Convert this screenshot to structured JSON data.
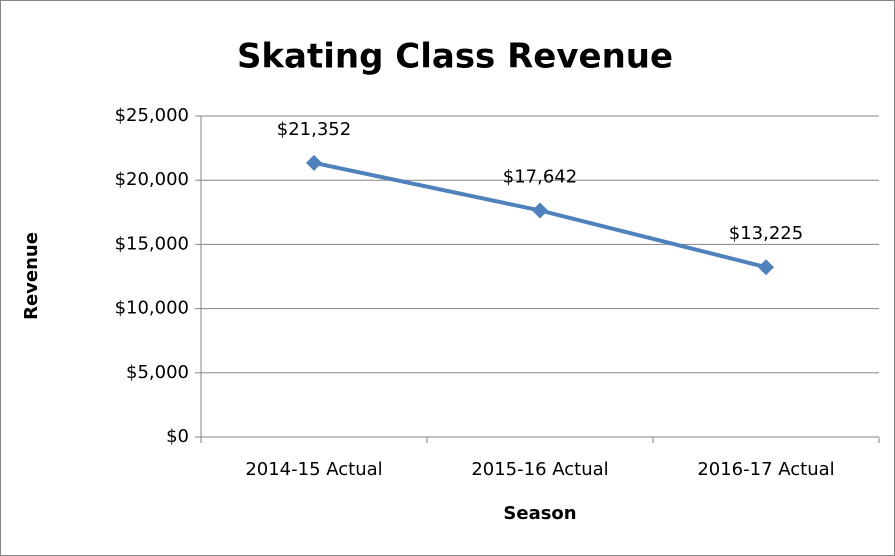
{
  "chart_data": {
    "type": "line",
    "title": "Skating Class Revenue",
    "x_label": "Season",
    "y_label": "Revenue",
    "categories": [
      "2014-15 Actual",
      "2015-16 Actual",
      "2016-17 Actual"
    ],
    "series": [
      {
        "name": "Revenue",
        "color": "#4f81bd",
        "values": [
          21352,
          17642,
          13225
        ],
        "value_labels": [
          "$21,352",
          "$17,642",
          "$13,225"
        ]
      }
    ],
    "ylim": [
      0,
      25000
    ],
    "yticks": [
      {
        "value": 0,
        "label": "$0"
      },
      {
        "value": 5000,
        "label": "$5,000"
      },
      {
        "value": 10000,
        "label": "$10,000"
      },
      {
        "value": 15000,
        "label": "$15,000"
      },
      {
        "value": 20000,
        "label": "$20,000"
      },
      {
        "value": 25000,
        "label": "$25,000"
      }
    ],
    "grid": true,
    "legend": false
  }
}
